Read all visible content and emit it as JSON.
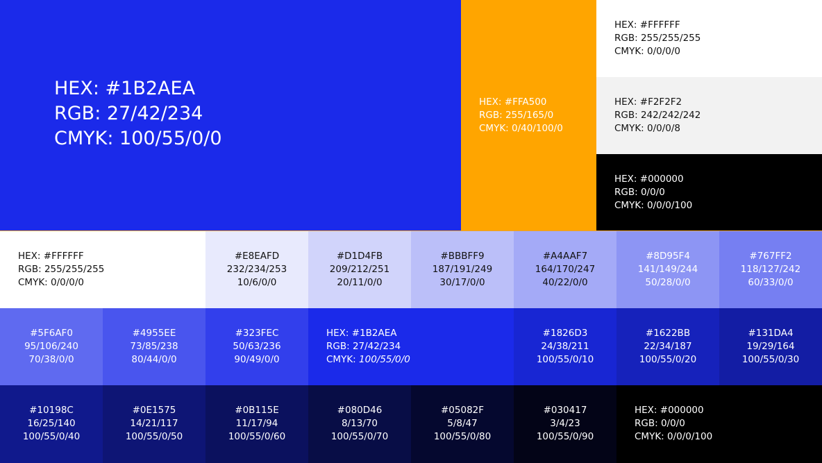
{
  "top": {
    "primary": {
      "hex": "HEX: #1B2AEA",
      "rgb": "RGB: 27/42/234",
      "cmyk": "CMYK: 100/55/0/0",
      "color": "#1B2AEA"
    },
    "orange": {
      "hex": "HEX: #FFA500",
      "rgb": "RGB: 255/165/0",
      "cmyk": "CMYK: 0/40/100/0",
      "color": "#FFA500"
    },
    "white": {
      "hex": "HEX: #FFFFFF",
      "rgb": "RGB: 255/255/255",
      "cmyk": "CMYK: 0/0/0/0",
      "color": "#FFFFFF"
    },
    "gray": {
      "hex": "HEX: #F2F2F2",
      "rgb": "RGB: 242/242/242",
      "cmyk": "CMYK: 0/0/0/8",
      "color": "#F2F2F2"
    },
    "black": {
      "hex": "HEX: #000000",
      "rgb": "RGB: 0/0/0",
      "cmyk": "CMYK: 0/0/0/100",
      "color": "#000000"
    }
  },
  "palette": {
    "row1": [
      {
        "hex": "HEX: #FFFFFF",
        "rgb": "RGB: 255/255/255",
        "cmyk": "CMYK: 0/0/0/0",
        "color": "#FFFFFF"
      },
      {
        "hex": "#E8EAFD",
        "rgb": "232/234/253",
        "cmyk": "10/6/0/0",
        "color": "#E8EAFD"
      },
      {
        "hex": "#D1D4FB",
        "rgb": "209/212/251",
        "cmyk": "20/11/0/0",
        "color": "#D1D4FB"
      },
      {
        "hex": "#BBBFF9",
        "rgb": "187/191/249",
        "cmyk": "30/17/0/0",
        "color": "#BBBFF9"
      },
      {
        "hex": "#A4AAF7",
        "rgb": "164/170/247",
        "cmyk": "40/22/0/0",
        "color": "#A4AAF7"
      },
      {
        "hex": "#8D95F4",
        "rgb": "141/149/244",
        "cmyk": "50/28/0/0",
        "color": "#8D95F4"
      },
      {
        "hex": "#767FF2",
        "rgb": "118/127/242",
        "cmyk": "60/33/0/0",
        "color": "#767FF2"
      }
    ],
    "row2": [
      {
        "hex": "#5F6AF0",
        "rgb": "95/106/240",
        "cmyk": "70/38/0/0",
        "color": "#5F6AF0"
      },
      {
        "hex": "#4955EE",
        "rgb": "73/85/238",
        "cmyk": "80/44/0/0",
        "color": "#4955EE"
      },
      {
        "hex": "#323FEC",
        "rgb": "50/63/236",
        "cmyk": "90/49/0/0",
        "color": "#323FEC"
      },
      {
        "hex": "HEX: #1B2AEA",
        "rgb": "RGB: 27/42/234",
        "cmyk_label": "CMYK: ",
        "cmyk_value": "100/55/0/0",
        "color": "#1B2AEA"
      },
      {
        "hex": "#1826D3",
        "rgb": "24/38/211",
        "cmyk": "100/55/0/10",
        "color": "#1826D3"
      },
      {
        "hex": "#1622BB",
        "rgb": "22/34/187",
        "cmyk": "100/55/0/20",
        "color": "#1622BB"
      },
      {
        "hex": "#131DA4",
        "rgb": "19/29/164",
        "cmyk": "100/55/0/30",
        "color": "#131DA4"
      }
    ],
    "row3": [
      {
        "hex": "#10198C",
        "rgb": "16/25/140",
        "cmyk": "100/55/0/40",
        "color": "#10198C"
      },
      {
        "hex": "#0E1575",
        "rgb": "14/21/117",
        "cmyk": "100/55/0/50",
        "color": "#0E1575"
      },
      {
        "hex": "#0B115E",
        "rgb": "11/17/94",
        "cmyk": "100/55/0/60",
        "color": "#0B115E"
      },
      {
        "hex": "#080D46",
        "rgb": "8/13/70",
        "cmyk": "100/55/0/70",
        "color": "#080D46"
      },
      {
        "hex": "#05082F",
        "rgb": "5/8/47",
        "cmyk": "100/55/0/80",
        "color": "#05082F"
      },
      {
        "hex": "#030417",
        "rgb": "3/4/23",
        "cmyk": "100/55/0/90",
        "color": "#030417"
      },
      {
        "hex": "HEX: #000000",
        "rgb": "RGB: 0/0/0",
        "cmyk": "CMYK: 0/0/0/100",
        "color": "#000000"
      }
    ]
  }
}
